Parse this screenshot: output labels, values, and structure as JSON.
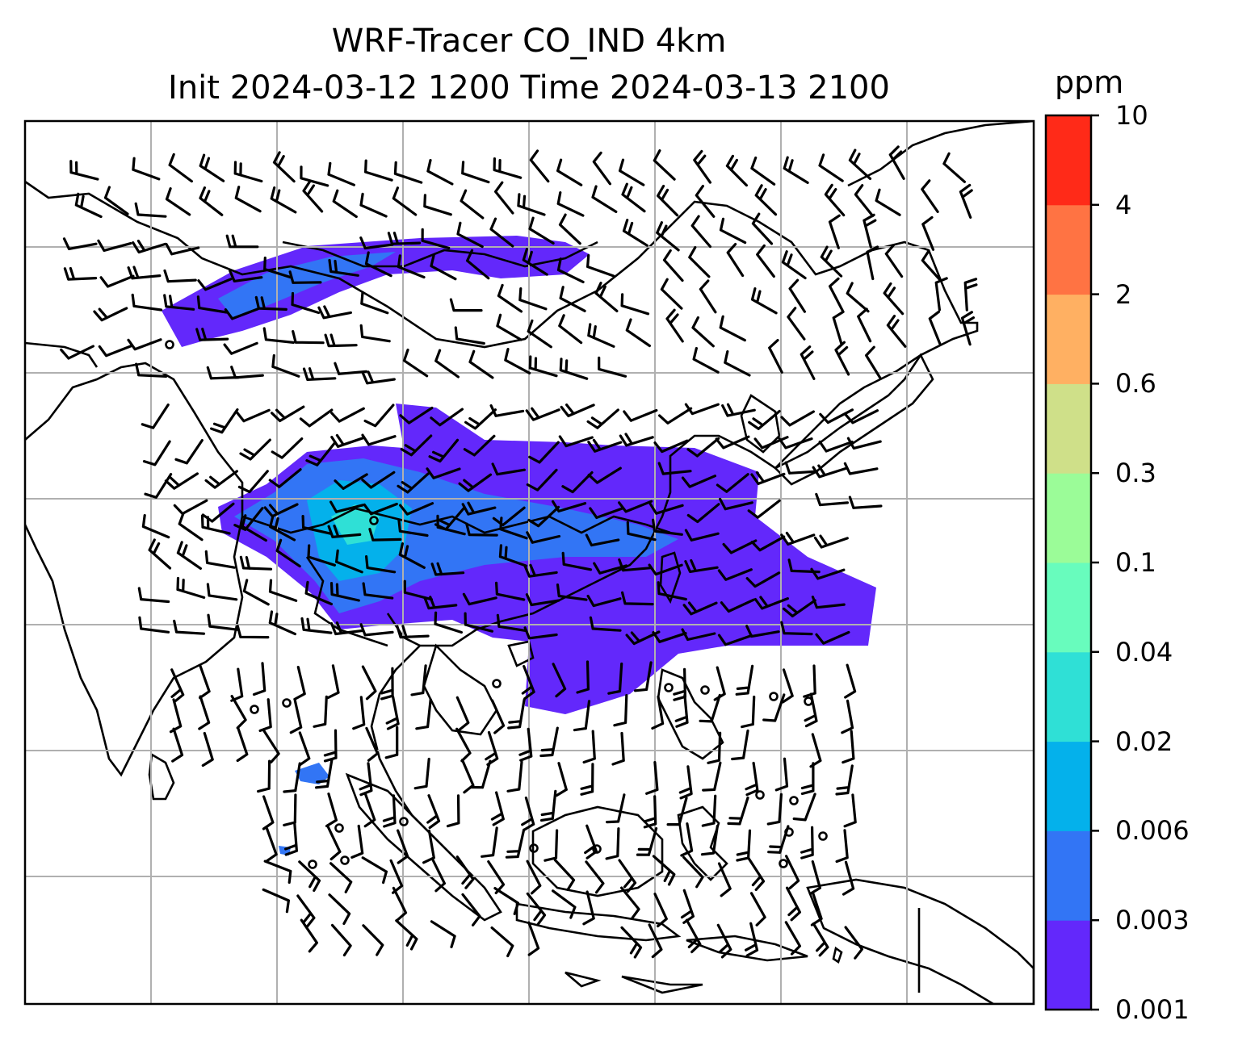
{
  "title_line1": "WRF-Tracer CO_IND 4km",
  "title_line2": "Init 2024-03-12 1200 Time 2024-03-13 2100",
  "colorbar": {
    "units": "ppm",
    "levels": [
      "0.001",
      "0.003",
      "0.006",
      "0.02",
      "0.04",
      "0.1",
      "0.3",
      "0.6",
      "2",
      "4",
      "10"
    ],
    "colors": [
      "#6328fb",
      "#3275f5",
      "#04b1eb",
      "#2fe0d6",
      "#68fcbd",
      "#9bfc98",
      "#cfe089",
      "#ffb062",
      "#ff7343",
      "#ff2a18"
    ]
  },
  "map": {
    "land_outline": "#000000",
    "gridline_color": "#b0b0b0",
    "wind_barbs": "black",
    "calm_wind_marker": "circle"
  }
}
